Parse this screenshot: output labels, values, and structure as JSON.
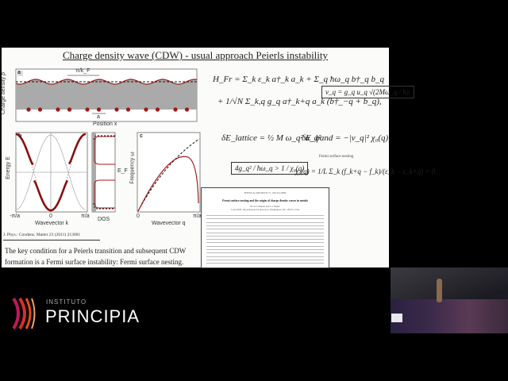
{
  "slide": {
    "title": "Charge density wave (CDW) - usual approach Peierls instability",
    "panel_a": {
      "label": "a",
      "ylabel": "Charge density ρ",
      "xlabel": "Position x",
      "period_label": "π/k_F",
      "lattice_label": "a"
    },
    "panel_b": {
      "label": "b",
      "ylabel": "Energy E",
      "xlabel": "Wavevector k",
      "ticks": [
        "-π/a",
        "0",
        "π/a"
      ],
      "dos_label": "DOS",
      "ef_label": "E_F"
    },
    "panel_c": {
      "label": "c",
      "ylabel": "Frequency ω",
      "xlabel": "Wavevector q",
      "ticks": [
        "0",
        "π/a"
      ]
    },
    "citation": "J. Phys.: Condens. Matter 23 (2011) 213001",
    "body_line1": "The key condition for a Peierls transition and subsequent CDW",
    "body_line2": "formation is a Fermi surface instability: Fermi surface nesting.",
    "equations": {
      "hamiltonian_1": "H_Fr = Σ_k ε_k a†_k a_k + Σ_q ħω_q b†_q b_q",
      "hamiltonian_2": "+ 1/√N Σ_k,q g_q a†_k+q a_k (b†_−q + b_q),",
      "vq": "v_q = g_q u_q √(2Mω_q / ħ),",
      "e_lattice": "δE_lattice = ½ M ω_q² u_q²",
      "e_band": "δE_band = −|v_q|² χ₀(q),",
      "condition": "4g_q² / ħω_q > 1 / χ₀(q)",
      "nesting_label": "Fermi surface nesting",
      "chi": "χ₀(q) = 1/L Σ_k (f_k+q − f_k)/(ε_k − ε_k+q) > 0."
    },
    "paper": {
      "journal": "PHYSICAL REVIEW B 77, 165135 (2008)",
      "title": "Fermi surface nesting and the origin of charge density waves in metals",
      "authors": "M. D. Johannes and I. I. Mazin",
      "affiliation": "Code 6393, Naval Research Laboratory, Washington, D.C. 20375, USA"
    }
  },
  "branding": {
    "logo_small": "INSTITUTO",
    "logo_large": "PRINCIPIA"
  },
  "colors": {
    "curve_red": "#a01818",
    "shade_gray": "#a9a9a9",
    "background": "#000000",
    "slide": "#fbfbfa"
  }
}
